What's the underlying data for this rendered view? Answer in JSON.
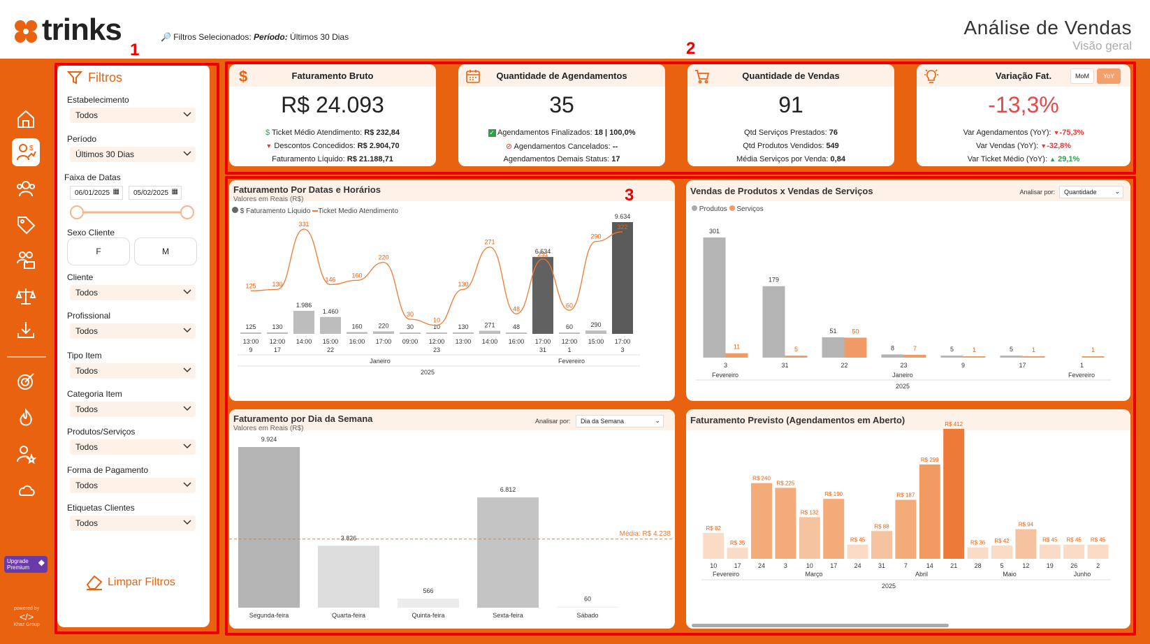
{
  "header": {
    "logo_text": "trinks",
    "filters_prefix": "Filtros Selecionados:",
    "filters_period_label": "Período:",
    "filters_period_value": "Últimos 30 Dias",
    "title": "Análise de Vendas",
    "subtitle": "Visão geral"
  },
  "sidebar": {
    "items": [
      "home-icon",
      "sales-analysis-icon",
      "clients-icon",
      "tag-icon",
      "professionals-icon",
      "balance-icon",
      "download-icon",
      "target-icon",
      "fire-icon",
      "user-star-icon",
      "cloud-icon"
    ],
    "upgrade_line1": "Upgrade",
    "upgrade_line2": "Premium",
    "powered_by": "powered by",
    "powered_company": "Khaz Group"
  },
  "annotations": {
    "label1": "1",
    "label2": "2",
    "label3": "3"
  },
  "filters": {
    "title": "Filtros",
    "estabelecimento_label": "Estabelecimento",
    "estabelecimento_value": "Todos",
    "periodo_label": "Período",
    "periodo_value": "Últimos 30 Dias",
    "faixa_label": "Faixa de Datas",
    "date_start": "06/01/2025",
    "date_end": "05/02/2025",
    "sexo_label": "Sexo Cliente",
    "sexo_f": "F",
    "sexo_m": "M",
    "cliente_label": "Cliente",
    "cliente_value": "Todos",
    "profissional_label": "Profissional",
    "profissional_value": "Todos",
    "tipo_label": "Tipo Item",
    "tipo_value": "Todos",
    "categoria_label": "Categoria Item",
    "categoria_value": "Todos",
    "produtos_label": "Produtos/Serviços",
    "produtos_value": "Todos",
    "pagamento_label": "Forma de Pagamento",
    "pagamento_value": "Todos",
    "etiquetas_label": "Etiquetas Clientes",
    "etiquetas_value": "Todos",
    "clear_label": "Limpar Filtros"
  },
  "kpis": {
    "faturamento": {
      "title": "Faturamento Bruto",
      "value": "R$ 24.093",
      "l1_label": "Ticket Médio Atendimento:",
      "l1_value": "R$ 232,84",
      "l2_label": "Descontos Concedidos:",
      "l2_value": "R$ 2.904,70",
      "l3_label": "Faturamento Líquido:",
      "l3_value": "R$ 21.188,71"
    },
    "agendamentos": {
      "title": "Quantidade de Agendamentos",
      "value": "35",
      "l1_label": "Agendamentos Finalizados:",
      "l1_value": "18 | 100,0%",
      "l2_label": "Agendamentos Cancelados:",
      "l2_value": "--",
      "l3_label": "Agendamentos Demais Status:",
      "l3_value": "17"
    },
    "vendas": {
      "title": "Quantidade de Vendas",
      "value": "91",
      "l1_label": "Qtd Serviços Prestados:",
      "l1_value": "76",
      "l2_label": "Qtd Produtos Vendidos:",
      "l2_value": "549",
      "l3_label": "Média Serviços por Venda:",
      "l3_value": "0,84"
    },
    "variacao": {
      "title": "Variação Fat.",
      "value": "-13,3%",
      "mom": "MoM",
      "yoy": "YoY",
      "l1_label": "Var Agendamentos (YoY):",
      "l1_value": "-75,3%",
      "l2_label": "Var Vendas (YoY):",
      "l2_value": "-32,8%",
      "l3_label": "Var Ticket Médio (YoY):",
      "l3_value": "29,1%",
      "neg_color": "#e53935",
      "pos_color": "#2e9e4d"
    }
  },
  "chart_data": [
    {
      "id": "datas",
      "type": "bar",
      "title": "Faturamento Por Datas e Horários",
      "subtitle": "Valores em Reais (R$)",
      "legend": [
        "$ Faturamento Líquido",
        "Ticket Medio Atendimento"
      ],
      "categories": [
        "13:00",
        "12:00",
        "14:00",
        "15:00",
        "16:00",
        "17:00",
        "09:00",
        "12:00",
        "13:00",
        "14:00",
        "16:00",
        "17:00",
        "12:00",
        "15:00",
        "17:00"
      ],
      "day_labels": [
        "9",
        "17",
        "22",
        "23",
        "31",
        "1",
        "3"
      ],
      "month_labels": [
        "Janeiro",
        "Fevereiro"
      ],
      "year_label": "2025",
      "series": [
        {
          "name": "$ Faturamento Líquido",
          "values": [
            125,
            130,
            1986,
            1460,
            160,
            220,
            30,
            10,
            130,
            271,
            48,
            6634,
            60,
            290,
            9634
          ],
          "labels": [
            "125",
            "130",
            "1.986",
            "1.460",
            "160",
            "220",
            "30",
            "10",
            "130",
            "271",
            "48",
            "6.634",
            "60",
            "290",
            "9.634"
          ]
        },
        {
          "name": "Ticket Medio Atendimento",
          "values": [
            125,
            130,
            331,
            146,
            160,
            220,
            30,
            10,
            130,
            271,
            48,
            231,
            60,
            290,
            322
          ],
          "labels": [
            "125",
            "130",
            "331",
            "146",
            "160",
            "220",
            "30",
            "10",
            "130",
            "271",
            "48",
            "231",
            "60",
            "290",
            "322"
          ]
        }
      ]
    },
    {
      "id": "produtos",
      "type": "bar",
      "title": "Vendas de Produtos x Vendas de Serviços",
      "analisar_label": "Analisar por:",
      "analisar_value": "Quantidade",
      "legend": [
        "Produtos",
        "Serviços"
      ],
      "categories": [
        "3",
        "31",
        "22",
        "23",
        "9",
        "17",
        "1"
      ],
      "month_labels": [
        "Fevereiro",
        "Janeiro",
        "Fevereiro"
      ],
      "year_label": "2025",
      "series": [
        {
          "name": "Produtos",
          "values": [
            301,
            179,
            51,
            8,
            5,
            5,
            null
          ],
          "labels": [
            "301",
            "179",
            "51",
            "8",
            "5",
            "5",
            ""
          ]
        },
        {
          "name": "Serviços",
          "values": [
            11,
            5,
            50,
            7,
            1,
            1,
            1
          ],
          "labels": [
            "11",
            "5",
            "50",
            "7",
            "1",
            "1",
            "1"
          ]
        }
      ]
    },
    {
      "id": "semana",
      "type": "bar",
      "title": "Faturamento por Dia da Semana",
      "subtitle": "Valores em Reais (R$)",
      "analisar_label": "Analisar por:",
      "analisar_value": "Dia da Semana",
      "categories": [
        "Segunda-feira",
        "Quarta-feira",
        "Quinta-feira",
        "Sexta-feira",
        "Sábado"
      ],
      "values": [
        9924,
        3826,
        566,
        6812,
        60
      ],
      "labels": [
        "9.924",
        "3.826",
        "566",
        "6.812",
        "60"
      ],
      "average_label": "Média: R$ 4.238",
      "average": 4238
    },
    {
      "id": "previsto",
      "type": "bar",
      "title": "Faturamento Previsto (Agendamentos em Aberto)",
      "categories": [
        "10",
        "17",
        "24",
        "3",
        "10",
        "17",
        "24",
        "31",
        "7",
        "14",
        "21",
        "28",
        "5",
        "12",
        "19",
        "26",
        "2"
      ],
      "month_labels": [
        "Fevereiro",
        "Março",
        "Abril",
        "Maio",
        "Junho"
      ],
      "year_label": "2025",
      "values": [
        82,
        35,
        240,
        225,
        132,
        190,
        45,
        88,
        187,
        299,
        412,
        36,
        42,
        94,
        45,
        45,
        45
      ],
      "labels": [
        "R$ 82",
        "R$ 35",
        "R$ 240",
        "R$ 225",
        "R$ 132",
        "R$ 190",
        "R$ 45",
        "R$ 88",
        "R$ 187",
        "R$ 299",
        "R$ 412",
        "R$ 36",
        "R$ 42",
        "R$ 94",
        "R$ 45",
        "R$ 45",
        "R$ 45"
      ]
    }
  ]
}
